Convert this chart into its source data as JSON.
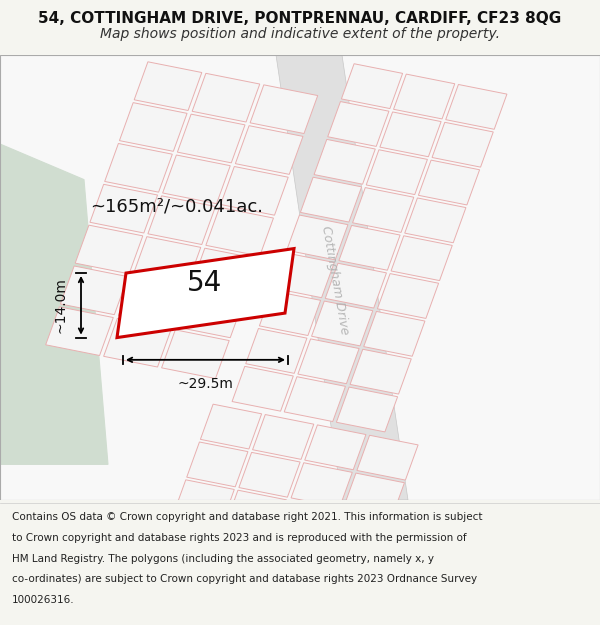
{
  "title_line1": "54, COTTINGHAM DRIVE, PONTPRENNAU, CARDIFF, CF23 8QG",
  "title_line2": "Map shows position and indicative extent of the property.",
  "footer_lines": [
    "Contains OS data © Crown copyright and database right 2021. This information is subject",
    "to Crown copyright and database rights 2023 and is reproduced with the permission of",
    "HM Land Registry. The polygons (including the associated geometry, namely x, y",
    "co-ordinates) are subject to Crown copyright and database rights 2023 Ordnance Survey",
    "100026316."
  ],
  "area_label": "~165m²/~0.041ac.",
  "number_label": "54",
  "width_label": "~29.5m",
  "height_label": "~14.0m",
  "road_label": "Cottingham Drive",
  "bg_color": "#f5f5f0",
  "map_bg": "#ffffff",
  "plot_fill": "#ffffff",
  "plot_outline": "#cc0000",
  "road_bg": "#e0e0e0",
  "grid_color": "#e8b0b0",
  "green_area": "#d0ddd0",
  "footer_bg": "#ffffff",
  "title_fontsize": 11,
  "subtitle_fontsize": 10,
  "footer_fontsize": 7.5
}
